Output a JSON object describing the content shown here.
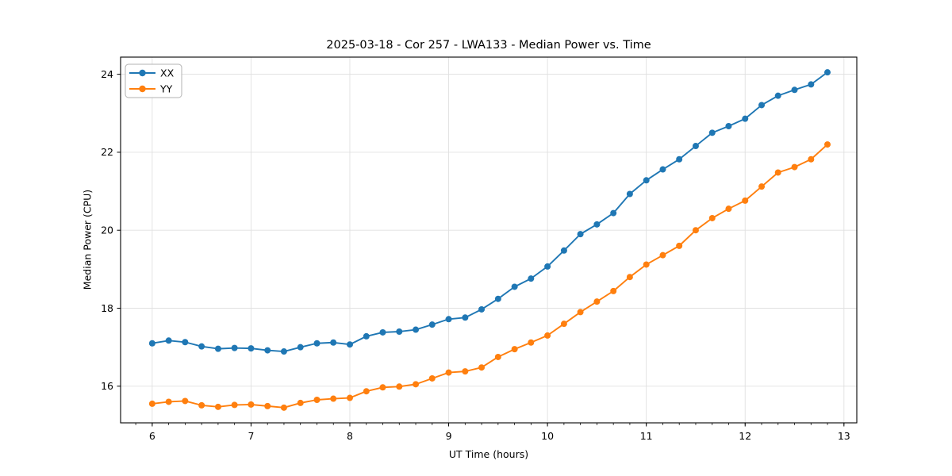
{
  "chart_data": {
    "type": "line",
    "title": "2025-03-18 - Cor 257 - LWA133 - Median Power vs. Time",
    "xlabel": "UT Time (hours)",
    "ylabel": "Median Power (CPU)",
    "xlim": [
      5.68,
      13.13
    ],
    "ylim": [
      15.06,
      24.44
    ],
    "x_ticks": [
      6,
      7,
      8,
      9,
      10,
      11,
      12,
      13
    ],
    "y_ticks": [
      16,
      18,
      20,
      22,
      24
    ],
    "x_minor_tick_step": 0.166667,
    "grid": true,
    "grid_color": "#e0e0e0",
    "spine_color": "#000000",
    "legend": {
      "position": "upper-left",
      "entries": [
        "XX",
        "YY"
      ]
    },
    "marker": "circle",
    "x": [
      6.0,
      6.167,
      6.333,
      6.5,
      6.667,
      6.833,
      7.0,
      7.167,
      7.333,
      7.5,
      7.667,
      7.833,
      8.0,
      8.167,
      8.333,
      8.5,
      8.667,
      8.833,
      9.0,
      9.167,
      9.333,
      9.5,
      9.667,
      9.833,
      10.0,
      10.167,
      10.333,
      10.5,
      10.667,
      10.833,
      11.0,
      11.167,
      11.333,
      11.5,
      11.667,
      11.833,
      12.0,
      12.167,
      12.333,
      12.5,
      12.667,
      12.833
    ],
    "series": [
      {
        "name": "XX",
        "color": "#1f77b4",
        "values": [
          17.1,
          17.17,
          17.13,
          17.02,
          16.96,
          16.98,
          16.97,
          16.92,
          16.89,
          17.0,
          17.1,
          17.12,
          17.07,
          17.28,
          17.38,
          17.4,
          17.45,
          17.58,
          17.72,
          17.76,
          17.97,
          18.24,
          18.55,
          18.76,
          19.07,
          19.48,
          19.9,
          20.15,
          20.44,
          20.93,
          21.28,
          21.56,
          21.82,
          22.16,
          22.5,
          22.67,
          22.86,
          23.21,
          23.45,
          23.6,
          23.74,
          24.05
        ]
      },
      {
        "name": "YY",
        "color": "#ff7f0e",
        "values": [
          15.55,
          15.6,
          15.62,
          15.51,
          15.47,
          15.52,
          15.53,
          15.49,
          15.45,
          15.57,
          15.65,
          15.68,
          15.7,
          15.87,
          15.97,
          15.99,
          16.05,
          16.2,
          16.35,
          16.38,
          16.48,
          16.75,
          16.95,
          17.12,
          17.3,
          17.6,
          17.9,
          18.17,
          18.44,
          18.8,
          19.12,
          19.36,
          19.6,
          20.0,
          20.31,
          20.55,
          20.76,
          21.12,
          21.48,
          21.62,
          21.82,
          22.2
        ]
      }
    ]
  }
}
